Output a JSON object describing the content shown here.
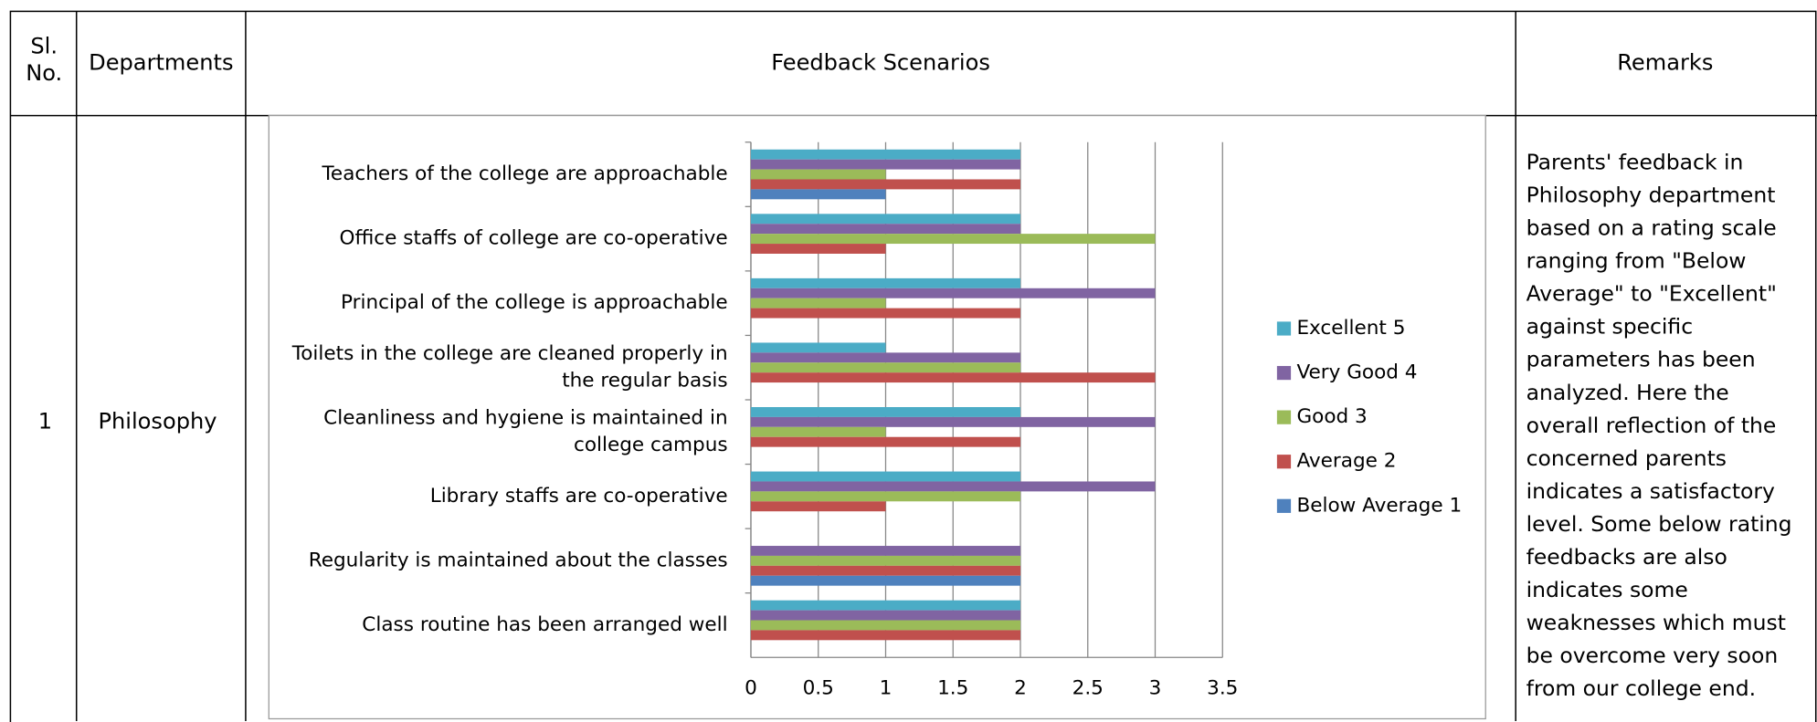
{
  "table": {
    "header": [
      "Sl. No.",
      "Departments",
      "Feedback Scenarios",
      "Remarks"
    ],
    "rows": [
      [
        "1",
        "Philosophy",
        "Parents' feedback in Philosophy department based on a rating scale ranging from \"Below Average\" to \"Excellent\" against specific parameters has been analyzed. Here the overall reflection of the concerned parents indicates a satisfactory level. Some below rating feedbacks are also indicates some weaknesses which must be overcome very soon from our college end."
      ]
    ]
  },
  "chart_data": {
    "type": "bar",
    "categories": [
      "Teachers of the college are approachable",
      "Office staffs of college are co-operative",
      "Principal of the college is approachable",
      "Toilets in the college are cleaned properly in the regular basis",
      "Cleanliness and hygiene is maintained in college campus",
      "Library staffs are co-operative",
      "Regularity is maintained about the classes",
      "Class routine has been arranged well"
    ],
    "series": [
      {
        "name": "Excellent 5",
        "color": "#4bacc6",
        "values": [
          2,
          2,
          2,
          1,
          2,
          2,
          0,
          2
        ]
      },
      {
        "name": "Very Good 4",
        "color": "#8064a2",
        "values": [
          2,
          2,
          3,
          2,
          3,
          3,
          2,
          2
        ]
      },
      {
        "name": "Good 3",
        "color": "#9bbb59",
        "values": [
          1,
          3,
          1,
          2,
          1,
          2,
          2,
          2
        ]
      },
      {
        "name": "Average 2",
        "color": "#c0504d",
        "values": [
          2,
          1,
          2,
          3,
          2,
          1,
          2,
          2
        ]
      },
      {
        "name": "Below Average 1",
        "color": "#4f81bd",
        "values": [
          1,
          0,
          0,
          0,
          0,
          0,
          2,
          0
        ]
      }
    ],
    "xlim": [
      0,
      3.5
    ],
    "xticks": [
      0,
      0.5,
      1,
      1.5,
      2,
      2.5,
      3,
      3.5
    ],
    "grid": true,
    "legend": "right"
  }
}
